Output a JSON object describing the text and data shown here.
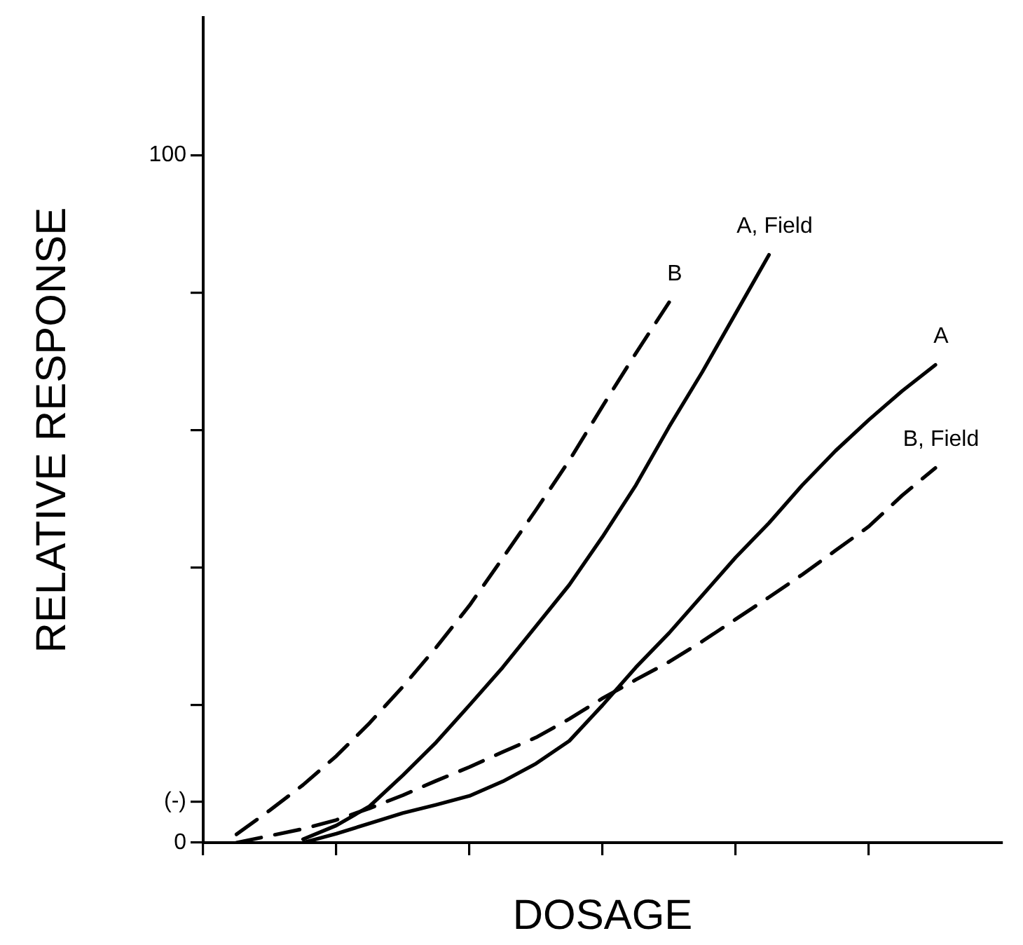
{
  "chart_data": {
    "type": "line",
    "xlabel": "DOSAGE",
    "ylabel": "RELATIVE RESPONSE",
    "categories": [
      null,
      null,
      null,
      null,
      null,
      null,
      null,
      null,
      null,
      null,
      null,
      null,
      null,
      null,
      null,
      null,
      null,
      null,
      null,
      null,
      null,
      null,
      null,
      null,
      null
    ],
    "ylim": [
      0,
      120
    ],
    "yticks": [
      0,
      {
        "value": 6,
        "label": "(-)"
      },
      {
        "value": 20,
        "label": null
      },
      {
        "value": 40,
        "label": null
      },
      {
        "value": 60,
        "label": null
      },
      {
        "value": 80,
        "label": null
      },
      100
    ],
    "grid": false,
    "legend": false,
    "marker": "none",
    "series": [
      {
        "name": "B",
        "color": "#000000",
        "line_style": "dashed",
        "values": [
          null,
          1.2,
          4.7,
          8.4,
          12.6,
          17.4,
          22.7,
          28.4,
          34.5,
          41.4,
          48.4,
          55.6,
          63.5,
          71.2,
          78.6,
          null,
          null,
          null,
          null,
          null,
          null,
          null,
          null,
          null,
          null
        ]
      },
      {
        "name": "A, Field",
        "color": "#000000",
        "line_style": "solid",
        "values": [
          null,
          null,
          null,
          0.5,
          2.5,
          5.3,
          9.8,
          14.6,
          20,
          25.5,
          31.5,
          37.5,
          44.5,
          52,
          60.5,
          68.5,
          77,
          85.5,
          null,
          null,
          null,
          null,
          null,
          null,
          null
        ]
      },
      {
        "name": "A",
        "color": "#000000",
        "line_style": "solid",
        "values": [
          null,
          null,
          null,
          0,
          1.3,
          2.8,
          4.3,
          5.5,
          6.8,
          8.9,
          11.5,
          14.8,
          20,
          25.5,
          30.5,
          36,
          41.5,
          46.5,
          52,
          57,
          61.5,
          65.7,
          69.5,
          null,
          null
        ]
      },
      {
        "name": "B, Field",
        "color": "#000000",
        "line_style": "dashed",
        "values": [
          null,
          0,
          1,
          2,
          3.3,
          5,
          6.9,
          9,
          11,
          13.2,
          15.3,
          18,
          21,
          23.7,
          26.3,
          29.3,
          32.5,
          35.7,
          39,
          42.5,
          46,
          50.5,
          54.5,
          null,
          null
        ]
      }
    ]
  }
}
